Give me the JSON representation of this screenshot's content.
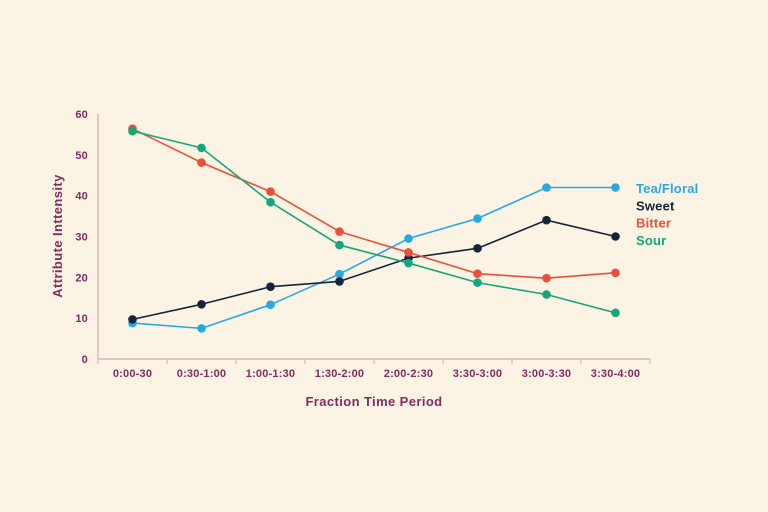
{
  "background_color": "#fbf3e4",
  "label_color": "#842c61",
  "axis_line_color": "#d4b4c0",
  "chart_data": {
    "type": "line",
    "title": "",
    "xlabel": "Fraction Time Period",
    "ylabel": "Attribute Inttensity",
    "categories": [
      "0:00-30",
      "0:30-1:00",
      "1:00-1:30",
      "1:30-2:00",
      "2:00-2:30",
      "3:30-3:00",
      "3:00-3:30",
      "3:30-4:00"
    ],
    "series": [
      {
        "name": "Tea/Floral",
        "color": "#29a9e2",
        "values": [
          8.8,
          7.5,
          13.3,
          20.8,
          29.5,
          34.4,
          42.0,
          42.0
        ]
      },
      {
        "name": "Sweet",
        "color": "#16243c",
        "values": [
          9.7,
          13.4,
          17.7,
          19.0,
          24.7,
          27.1,
          34.0,
          30.0
        ]
      },
      {
        "name": "Bitter",
        "color": "#e8503c",
        "values": [
          56.4,
          48.1,
          41.0,
          31.2,
          26.1,
          20.9,
          19.8,
          21.1
        ]
      },
      {
        "name": "Sour",
        "color": "#14a77c",
        "values": [
          55.8,
          51.7,
          38.4,
          27.9,
          23.5,
          18.7,
          15.8,
          11.3
        ]
      }
    ],
    "ylim": [
      0,
      60
    ],
    "ytick_interval": 10,
    "grid": false,
    "legend_position": "right"
  }
}
